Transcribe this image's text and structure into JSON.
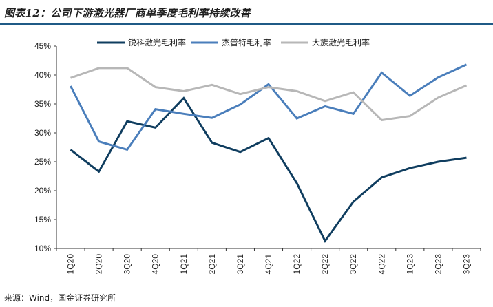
{
  "title": "图表12：公司下游激光器厂商单季度毛利率持续改善",
  "source": "来源：Wind，国金证券研究所",
  "chart_data": {
    "type": "line",
    "categories": [
      "1Q20",
      "2Q20",
      "3Q20",
      "4Q20",
      "1Q21",
      "2Q21",
      "3Q21",
      "4Q21",
      "1Q22",
      "2Q22",
      "3Q22",
      "4Q22",
      "1Q23",
      "2Q23",
      "3Q23"
    ],
    "ylim": [
      10,
      45
    ],
    "yticks": [
      10,
      15,
      20,
      25,
      30,
      35,
      40,
      45
    ],
    "ytick_labels": [
      "10%",
      "15%",
      "20%",
      "25%",
      "30%",
      "35%",
      "40%",
      "45%"
    ],
    "grid": false,
    "legend_position": "top",
    "series": [
      {
        "name": "锐科激光毛利率",
        "color": "#0f3d5f",
        "values": [
          27.1,
          23.3,
          32.0,
          30.9,
          36.0,
          28.3,
          26.7,
          29.1,
          21.3,
          11.3,
          18.1,
          22.3,
          23.9,
          25.0,
          25.7
        ]
      },
      {
        "name": "杰普特毛利率",
        "color": "#4a7ebb",
        "values": [
          38.1,
          28.5,
          27.1,
          34.1,
          33.3,
          32.6,
          34.9,
          38.4,
          32.5,
          34.6,
          33.3,
          40.4,
          36.4,
          39.6,
          41.8
        ]
      },
      {
        "name": "大族激光毛利率",
        "color": "#b7b7b7",
        "values": [
          39.5,
          41.2,
          41.2,
          37.9,
          37.2,
          38.3,
          36.7,
          37.9,
          37.2,
          35.5,
          37.0,
          32.2,
          32.9,
          36.1,
          38.2
        ]
      }
    ]
  }
}
